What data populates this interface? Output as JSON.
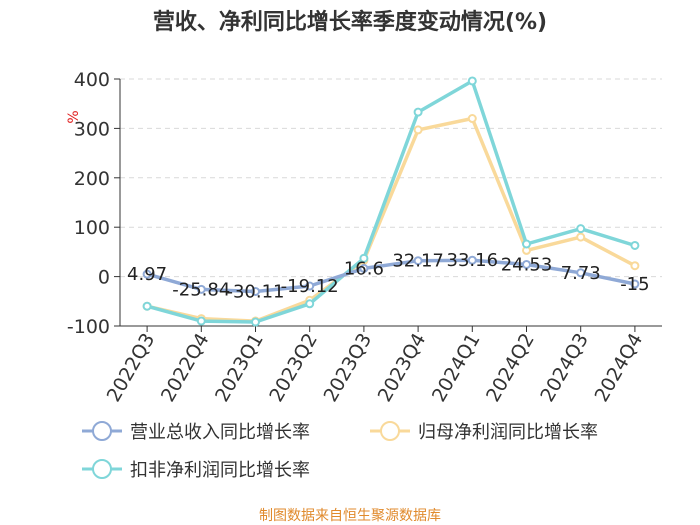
{
  "chart_data": {
    "type": "line",
    "title": "营收、净利同比增长率季度变动情况(%)",
    "ylabel": "%",
    "ylim": [
      -100,
      400
    ],
    "yticks": [
      -100,
      0,
      100,
      200,
      300,
      400
    ],
    "grid": true,
    "legend_position": "bottom",
    "categories": [
      "2022Q3",
      "2022Q4",
      "2023Q1",
      "2023Q2",
      "2023Q3",
      "2023Q4",
      "2024Q1",
      "2024Q2",
      "2024Q3",
      "2024Q4"
    ],
    "series": [
      {
        "name": "营业总收入同比增长率",
        "color": "#8fa9d6",
        "values": [
          4.97,
          -25.84,
          -30.11,
          -19.12,
          16.6,
          32.17,
          33.16,
          24.53,
          7.73,
          -15
        ],
        "labels": [
          "4.97",
          "-25.84",
          "-30.11",
          "-19.12",
          "16.6",
          "32.17",
          "33.16",
          "24.53",
          "7.73",
          "-15"
        ]
      },
      {
        "name": "归母净利润同比增长率",
        "color": "#f9d99a",
        "values": [
          -60,
          -85,
          -90,
          -48,
          33,
          297,
          320,
          53,
          80,
          22
        ]
      },
      {
        "name": "扣非净利润同比增长率",
        "color": "#7fd6d9",
        "values": [
          -60,
          -90,
          -92,
          -55,
          37,
          333,
          396,
          66,
          97,
          63
        ]
      }
    ]
  },
  "source": "制图数据来自恒生聚源数据库"
}
